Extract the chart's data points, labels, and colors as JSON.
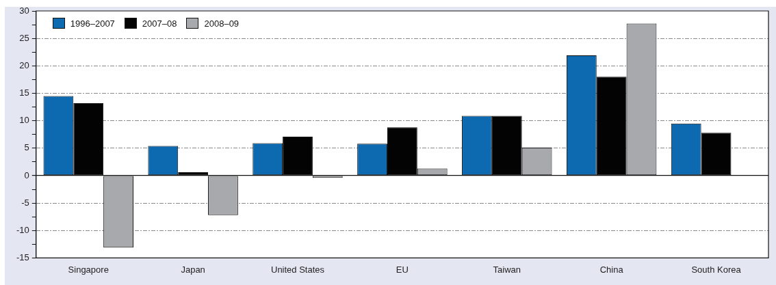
{
  "chart_data": {
    "type": "bar",
    "categories": [
      "Singapore",
      "Japan",
      "United States",
      "EU",
      "Taiwan",
      "China",
      "South Korea"
    ],
    "series": [
      {
        "name": "1996–2007",
        "color": "#0e6ab0",
        "values": [
          14.5,
          5.4,
          5.9,
          5.8,
          10.9,
          21.9,
          9.5
        ]
      },
      {
        "name": "2007–08",
        "color": "#030303",
        "values": [
          13.2,
          0.6,
          7.1,
          8.8,
          10.9,
          18.0,
          7.8
        ]
      },
      {
        "name": "2008–09",
        "color": "#a8a9ac",
        "values": [
          -13.1,
          -7.2,
          -0.4,
          1.3,
          5.1,
          27.7,
          null
        ]
      }
    ],
    "ylim": [
      -15,
      30
    ],
    "yticks": [
      -15,
      {
        "value": -12.5,
        "label": null
      },
      -10,
      {
        "value": -7.5,
        "label": null
      },
      -5,
      {
        "value": -2.5,
        "label": null
      },
      0,
      {
        "value": 2.5,
        "label": null
      },
      5,
      {
        "value": 7.5,
        "label": null
      },
      10,
      {
        "value": 12.5,
        "label": null
      },
      15,
      {
        "value": 17.5,
        "label": null
      },
      20,
      {
        "value": 22.5,
        "label": null
      },
      25,
      {
        "value": 27.5,
        "label": null
      },
      30
    ],
    "grid": "y",
    "legend": "top left"
  }
}
